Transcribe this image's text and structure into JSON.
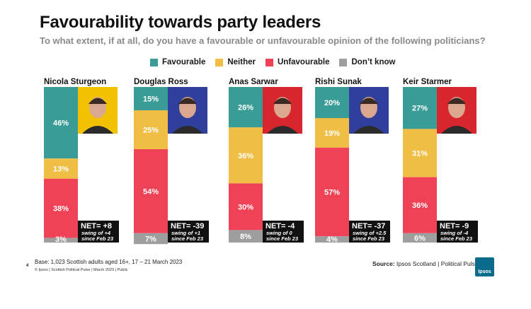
{
  "title": "Favourability towards party leaders",
  "subtitle": "To what extent, if at all, do you have a favourable or unfavourable opinion of the following politicians?",
  "legend": [
    {
      "label": "Favourable",
      "color": "#3a9c96"
    },
    {
      "label": "Neither",
      "color": "#f1be45"
    },
    {
      "label": "Unfavourable",
      "color": "#ef4256"
    },
    {
      "label": "Don’t know",
      "color": "#9e9e9e"
    }
  ],
  "chart_data": {
    "type": "bar",
    "stacked": true,
    "categories": [
      "Nicola Sturgeon",
      "Douglas Ross",
      "Anas Sarwar",
      "Rishi Sunak",
      "Keir Starmer"
    ],
    "series": [
      {
        "name": "Favourable",
        "values": [
          46,
          15,
          26,
          20,
          27
        ]
      },
      {
        "name": "Neither",
        "values": [
          13,
          25,
          36,
          19,
          31
        ]
      },
      {
        "name": "Unfavourable",
        "values": [
          38,
          54,
          30,
          57,
          36
        ]
      },
      {
        "name": "Don’t know",
        "values": [
          3,
          7,
          8,
          4,
          6
        ]
      }
    ],
    "value_labels": [
      [
        "46%",
        "13%",
        "38%",
        "3%"
      ],
      [
        "15%",
        "25%",
        "54%",
        "7%"
      ],
      [
        "26%",
        "36%",
        "30%",
        "8%"
      ],
      [
        "20%",
        "19%",
        "57%",
        "4%"
      ],
      [
        "27%",
        "31%",
        "36%",
        "6%"
      ]
    ],
    "ylim": [
      0,
      100
    ],
    "net": [
      {
        "label": "NET= +8",
        "swing": "swing of +4",
        "since": "since Feb 23"
      },
      {
        "label": "NET= -39",
        "swing": "swing of +1",
        "since": "since Feb 23"
      },
      {
        "label": "NET= -4",
        "swing": "swing of 0",
        "since": "since Feb 23"
      },
      {
        "label": "NET= -37",
        "swing": "swing of +2.5",
        "since": "since Feb 23"
      },
      {
        "label": "NET= -9",
        "swing": "swing of -4",
        "since": "since Feb 23"
      }
    ],
    "portrait_backgrounds": [
      "#f2c200",
      "#2f3f9b",
      "#d8262f",
      "#2f3f9b",
      "#d8262f"
    ]
  },
  "footer": {
    "page_number": "4",
    "base": "Base: 1,023 Scottish adults aged 16+, 17 – 21 March 2023",
    "copyright": "© Ipsos | Scottish Political Pulse | March 2023 | Public",
    "source_label": "Source:",
    "source_text": " Ipsos Scotland | Political Pulse",
    "logo_text": "Ipsos"
  }
}
